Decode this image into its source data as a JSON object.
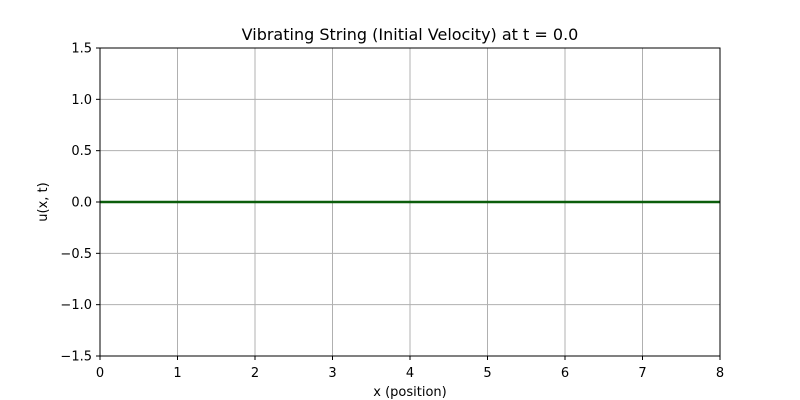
{
  "chart_data": {
    "type": "line",
    "title": "Vibrating String (Initial Velocity) at t = 0.0",
    "xlabel": "x (position)",
    "ylabel": "u(x, t)",
    "xlim": [
      0,
      8
    ],
    "ylim": [
      -1.5,
      1.5
    ],
    "x_ticks": [
      0,
      1,
      2,
      3,
      4,
      5,
      6,
      7,
      8
    ],
    "x_tick_labels": [
      "0",
      "1",
      "2",
      "3",
      "4",
      "5",
      "6",
      "7",
      "8"
    ],
    "y_ticks": [
      -1.5,
      -1.0,
      -0.5,
      0.0,
      0.5,
      1.0,
      1.5
    ],
    "y_tick_labels": [
      "−1.5",
      "−1.0",
      "−0.5",
      "0.0",
      "0.5",
      "1.0",
      "1.5"
    ],
    "grid": true,
    "series": [
      {
        "color": "#0b5d0b",
        "x": [
          0,
          1,
          2,
          3,
          4,
          5,
          6,
          7,
          8
        ],
        "y": [
          0,
          0,
          0,
          0,
          0,
          0,
          0,
          0,
          0
        ]
      }
    ]
  }
}
